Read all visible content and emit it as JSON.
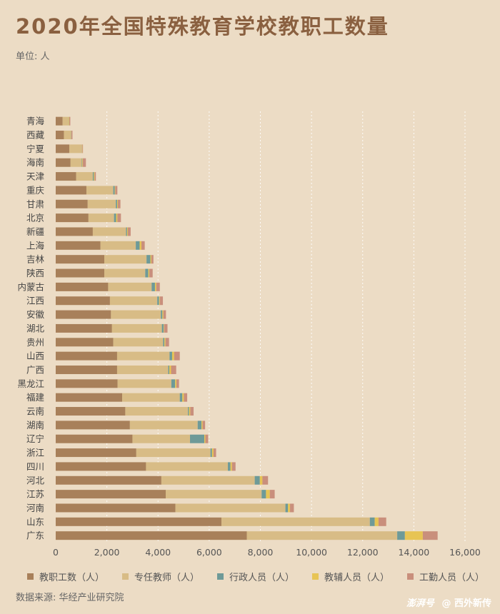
{
  "header": {
    "title": "2020年全国特殊教育学校教职工数量",
    "unit": "单位: 人"
  },
  "footer": {
    "source": "数据来源: 华经产业研究院",
    "watermark_brand": "澎湃号",
    "watermark_author": "@ 西外新传"
  },
  "colors": {
    "background": "#ecdcc5",
    "gridline": "#ffffff",
    "axis_text": "#555555"
  },
  "chart_data": {
    "type": "bar",
    "orientation": "horizontal",
    "stacked": true,
    "title": "2020年全国特殊教育学校教职工数量",
    "xlabel": "",
    "ylabel": "",
    "unit": "单位: 人",
    "xlim": [
      0,
      16000
    ],
    "xticks": [
      0,
      2000,
      4000,
      6000,
      8000,
      10000,
      12000,
      14000,
      16000
    ],
    "xtick_labels": [
      "0",
      "2,000",
      "4,000",
      "6,000",
      "8,000",
      "10,000",
      "12,000",
      "14,000",
      "16,000"
    ],
    "grid": "vertical-dashed",
    "legend_position": "bottom",
    "categories": [
      "青海",
      "西藏",
      "宁夏",
      "海南",
      "天津",
      "重庆",
      "甘肃",
      "北京",
      "新疆",
      "上海",
      "吉林",
      "陕西",
      "内蒙古",
      "江西",
      "安徽",
      "湖北",
      "贵州",
      "山西",
      "广西",
      "黑龙江",
      "福建",
      "云南",
      "湖南",
      "辽宁",
      "浙江",
      "四川",
      "河北",
      "江苏",
      "河南",
      "山东",
      "广东"
    ],
    "series": [
      {
        "name": "教职工数（人）",
        "color": "#a8805a",
        "values": [
          270,
          320,
          530,
          580,
          800,
          1200,
          1250,
          1280,
          1450,
          1750,
          1900,
          1900,
          2050,
          2120,
          2160,
          2200,
          2250,
          2400,
          2400,
          2420,
          2600,
          2720,
          2900,
          3000,
          3150,
          3530,
          4130,
          4300,
          4680,
          6480,
          7470
        ]
      },
      {
        "name": "专任教师（人）",
        "color": "#d8bc86",
        "values": [
          230,
          280,
          500,
          440,
          650,
          1050,
          1100,
          1000,
          1300,
          1380,
          1650,
          1600,
          1700,
          1850,
          1950,
          1950,
          1950,
          2050,
          2000,
          2100,
          2250,
          2450,
          2650,
          2250,
          2900,
          3200,
          3650,
          3750,
          4300,
          5800,
          5880
        ]
      },
      {
        "name": "行政人员（人）",
        "color": "#6e9a98",
        "values": [
          10,
          10,
          5,
          20,
          40,
          60,
          50,
          80,
          40,
          150,
          150,
          120,
          130,
          70,
          60,
          70,
          50,
          100,
          40,
          150,
          100,
          40,
          150,
          560,
          60,
          100,
          200,
          170,
          100,
          190,
          300
        ]
      },
      {
        "name": "教辅人员（人）",
        "color": "#e7c454",
        "values": [
          20,
          5,
          10,
          20,
          30,
          20,
          30,
          50,
          30,
          70,
          40,
          40,
          50,
          30,
          40,
          20,
          40,
          80,
          70,
          50,
          60,
          50,
          40,
          40,
          60,
          60,
          100,
          150,
          80,
          150,
          700
        ]
      },
      {
        "name": "工勤人员（人）",
        "color": "#c98f7c",
        "values": [
          40,
          40,
          20,
          120,
          50,
          80,
          100,
          140,
          110,
          130,
          80,
          130,
          140,
          120,
          100,
          130,
          140,
          220,
          200,
          100,
          130,
          130,
          100,
          110,
          100,
          140,
          220,
          190,
          150,
          300,
          580
        ]
      }
    ]
  }
}
